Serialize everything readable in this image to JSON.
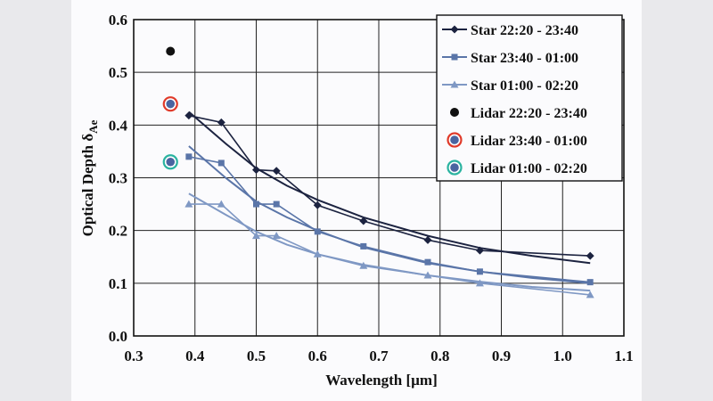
{
  "chart_data": {
    "type": "scatter",
    "xlabel": "Wavelength [µm]",
    "ylabel": "Optical Depth δ",
    "ylabel_subscript": "Ae",
    "xlim": [
      0.3,
      1.1
    ],
    "ylim": [
      0.0,
      0.6
    ],
    "x_ticks": [
      "0.3",
      "0.4",
      "0.5",
      "0.6",
      "0.7",
      "0.8",
      "0.9",
      "1.0",
      "1.1"
    ],
    "y_ticks": [
      "0.0",
      "0.1",
      "0.2",
      "0.3",
      "0.4",
      "0.5",
      "0.6"
    ],
    "grid": true,
    "legend_position": "top-right",
    "series": [
      {
        "name": "Star   22:20 - 23:40",
        "marker": "diamond",
        "color": "#1c2340",
        "x": [
          0.39,
          0.443,
          0.5,
          0.533,
          0.6,
          0.675,
          0.78,
          0.865,
          1.045
        ],
        "y": [
          0.418,
          0.405,
          0.315,
          0.313,
          0.248,
          0.218,
          0.182,
          0.162,
          0.152
        ],
        "fit": {
          "x": [
            0.39,
            0.45,
            0.5,
            0.55,
            0.6,
            0.675,
            0.78,
            0.865,
            0.95,
            1.045
          ],
          "y": [
            0.425,
            0.365,
            0.318,
            0.285,
            0.258,
            0.225,
            0.19,
            0.167,
            0.152,
            0.138
          ]
        }
      },
      {
        "name": "Star   23:40 - 01:00",
        "marker": "square",
        "color": "#5a75a8",
        "x": [
          0.39,
          0.443,
          0.5,
          0.533,
          0.6,
          0.675,
          0.78,
          0.865,
          1.045
        ],
        "y": [
          0.34,
          0.328,
          0.25,
          0.25,
          0.198,
          0.17,
          0.14,
          0.122,
          0.102
        ],
        "fit": {
          "x": [
            0.39,
            0.45,
            0.5,
            0.55,
            0.6,
            0.675,
            0.78,
            0.865,
            0.95,
            1.045
          ],
          "y": [
            0.36,
            0.3,
            0.255,
            0.225,
            0.2,
            0.168,
            0.138,
            0.122,
            0.11,
            0.1
          ]
        }
      },
      {
        "name": "Star   01:00 - 02:20",
        "marker": "triangle",
        "color": "#7f98c4",
        "x": [
          0.39,
          0.443,
          0.5,
          0.533,
          0.6,
          0.675,
          0.78,
          0.865,
          1.045
        ],
        "y": [
          0.25,
          0.25,
          0.19,
          0.19,
          0.155,
          0.133,
          0.115,
          0.1,
          0.078
        ],
        "fit": {
          "x": [
            0.39,
            0.45,
            0.5,
            0.55,
            0.6,
            0.675,
            0.78,
            0.865,
            0.95,
            1.045
          ],
          "y": [
            0.27,
            0.23,
            0.198,
            0.173,
            0.155,
            0.135,
            0.115,
            0.103,
            0.093,
            0.086
          ]
        }
      },
      {
        "name": "Lidar 22:20 - 23:40",
        "marker": "circle",
        "color": "#111111",
        "ring": "",
        "x": [
          0.36
        ],
        "y": [
          0.54
        ]
      },
      {
        "name": "Lidar 23:40 - 01:00",
        "marker": "circle",
        "color": "#4a64a0",
        "ring": "#e03a2a",
        "x": [
          0.36
        ],
        "y": [
          0.44
        ]
      },
      {
        "name": "Lidar 01:00 - 02:20",
        "marker": "circle",
        "color": "#4a64a0",
        "ring": "#2ab3a0",
        "x": [
          0.36
        ],
        "y": [
          0.33
        ]
      }
    ]
  }
}
